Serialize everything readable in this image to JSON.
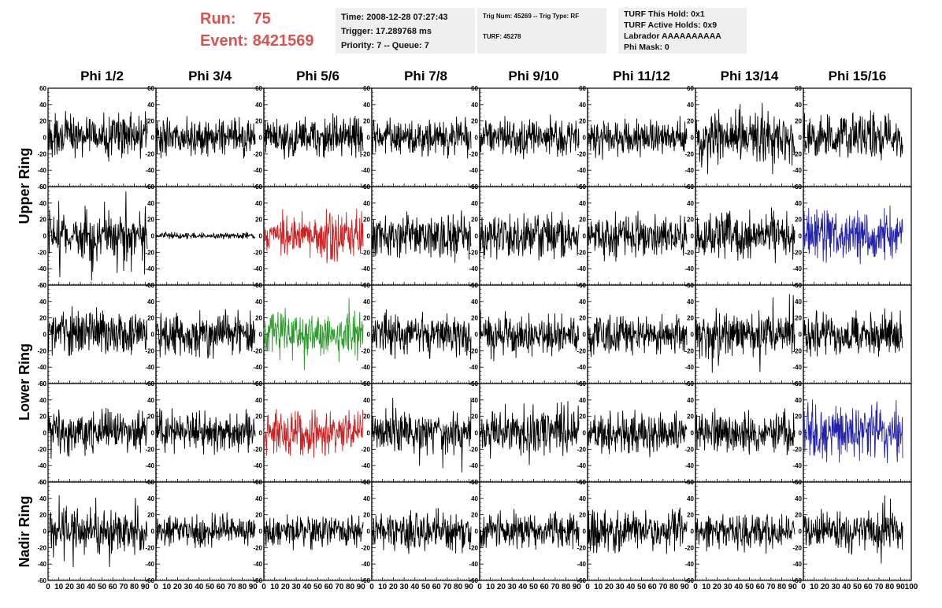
{
  "header": {
    "run_label": "Run:",
    "run_value": "75",
    "event_label": "Event:",
    "event_value": "8421569"
  },
  "info_boxes": {
    "time": [
      "Time: 2008-12-28 07:27:43",
      "Trigger: 17.289768 ms",
      "Priority: 7 -- Queue: 7"
    ],
    "trig": [
      "Trig Num: 45269 -- Trig Type: RF",
      "",
      "TURF: 45278"
    ],
    "turf": [
      "TURF This Hold: 0x1",
      "TURF Active Holds: 0x9",
      "Labrador AAAAAAAAAA",
      "Phi Mask: 0"
    ]
  },
  "chart_data": {
    "type": "line",
    "title": "",
    "columns": [
      "Phi 1/2",
      "Phi 3/4",
      "Phi 5/6",
      "Phi 7/8",
      "Phi 9/10",
      "Phi 11/12",
      "Phi 13/14",
      "Phi 15/16"
    ],
    "ring_labels": [
      {
        "label": "Upper Ring",
        "rows": [
          0,
          1
        ]
      },
      {
        "label": "Lower Ring",
        "rows": [
          2,
          3
        ]
      },
      {
        "label": "Nadir Ring",
        "rows": [
          4,
          4
        ]
      }
    ],
    "xlim": [
      0,
      100
    ],
    "ylim": [
      -60,
      60
    ],
    "x_ticks": [
      0,
      10,
      20,
      30,
      40,
      50,
      60,
      70,
      80,
      90,
      100
    ],
    "y_ticks": [
      -60,
      -40,
      -20,
      0,
      20,
      40,
      60
    ],
    "x_tick_labels_per_panel": [
      "0",
      "10",
      "20",
      "30",
      "40",
      "50",
      "60",
      "70",
      "80",
      "90",
      "100"
    ],
    "waveform_x_range": [
      0,
      92
    ],
    "panels": [
      {
        "row": 0,
        "col": 0,
        "color": "#000000",
        "amplitude": 14,
        "peak": 27,
        "center": 2
      },
      {
        "row": 0,
        "col": 1,
        "color": "#000000",
        "amplitude": 13,
        "peak": 21,
        "center": 0
      },
      {
        "row": 0,
        "col": 2,
        "color": "#000000",
        "amplitude": 13,
        "peak": 30,
        "center": 0
      },
      {
        "row": 0,
        "col": 3,
        "color": "#000000",
        "amplitude": 13,
        "peak": 22,
        "center": 0
      },
      {
        "row": 0,
        "col": 4,
        "color": "#000000",
        "amplitude": 13,
        "peak": 22,
        "center": 0
      },
      {
        "row": 0,
        "col": 5,
        "color": "#000000",
        "amplitude": 12,
        "peak": 20,
        "center": 0
      },
      {
        "row": 0,
        "col": 6,
        "color": "#000000",
        "amplitude": 16,
        "peak": 45,
        "center": 0
      },
      {
        "row": 0,
        "col": 7,
        "color": "#000000",
        "amplitude": 15,
        "peak": 30,
        "center": 0
      },
      {
        "row": 1,
        "col": 0,
        "color": "#000000",
        "amplitude": 17,
        "peak": 55,
        "center": 0
      },
      {
        "row": 1,
        "col": 1,
        "color": "#000000",
        "amplitude": 2,
        "peak": 5,
        "center": 0
      },
      {
        "row": 1,
        "col": 2,
        "color": "#cc2222",
        "amplitude": 15,
        "peak": 35,
        "center": 0
      },
      {
        "row": 1,
        "col": 3,
        "color": "#000000",
        "amplitude": 15,
        "peak": 30,
        "center": 0
      },
      {
        "row": 1,
        "col": 4,
        "color": "#000000",
        "amplitude": 15,
        "peak": 30,
        "center": 0
      },
      {
        "row": 1,
        "col": 5,
        "color": "#000000",
        "amplitude": 14,
        "peak": 25,
        "center": 0
      },
      {
        "row": 1,
        "col": 6,
        "color": "#000000",
        "amplitude": 16,
        "peak": 35,
        "center": 0
      },
      {
        "row": 1,
        "col": 7,
        "color": "#2222aa",
        "amplitude": 17,
        "peak": 32,
        "center": 0
      },
      {
        "row": 2,
        "col": 0,
        "color": "#000000",
        "amplitude": 15,
        "peak": 28,
        "center": 2
      },
      {
        "row": 2,
        "col": 1,
        "color": "#000000",
        "amplitude": 15,
        "peak": 30,
        "center": 0
      },
      {
        "row": 2,
        "col": 2,
        "color": "#2a9a2a",
        "amplitude": 15,
        "peak": 45,
        "center": 0
      },
      {
        "row": 2,
        "col": 3,
        "color": "#000000",
        "amplitude": 14,
        "peak": 30,
        "center": 0
      },
      {
        "row": 2,
        "col": 4,
        "color": "#000000",
        "amplitude": 14,
        "peak": 30,
        "center": 0
      },
      {
        "row": 2,
        "col": 5,
        "color": "#000000",
        "amplitude": 13,
        "peak": 25,
        "center": 0
      },
      {
        "row": 2,
        "col": 6,
        "color": "#000000",
        "amplitude": 16,
        "peak": 55,
        "center": 0
      },
      {
        "row": 2,
        "col": 7,
        "color": "#000000",
        "amplitude": 14,
        "peak": 30,
        "center": 0
      },
      {
        "row": 3,
        "col": 0,
        "color": "#000000",
        "amplitude": 15,
        "peak": 30,
        "center": 0
      },
      {
        "row": 3,
        "col": 1,
        "color": "#000000",
        "amplitude": 14,
        "peak": 30,
        "center": 0
      },
      {
        "row": 3,
        "col": 2,
        "color": "#cc2222",
        "amplitude": 15,
        "peak": 30,
        "center": 0
      },
      {
        "row": 3,
        "col": 3,
        "color": "#000000",
        "amplitude": 15,
        "peak": 50,
        "center": 0
      },
      {
        "row": 3,
        "col": 4,
        "color": "#000000",
        "amplitude": 15,
        "peak": 45,
        "center": 0
      },
      {
        "row": 3,
        "col": 5,
        "color": "#000000",
        "amplitude": 14,
        "peak": 30,
        "center": 0
      },
      {
        "row": 3,
        "col": 6,
        "color": "#000000",
        "amplitude": 14,
        "peak": 30,
        "center": 0
      },
      {
        "row": 3,
        "col": 7,
        "color": "#2222aa",
        "amplitude": 18,
        "peak": 45,
        "center": 0
      },
      {
        "row": 4,
        "col": 0,
        "color": "#000000",
        "amplitude": 15,
        "peak": 45,
        "center": 0
      },
      {
        "row": 4,
        "col": 1,
        "color": "#000000",
        "amplitude": 11,
        "peak": 20,
        "center": 0
      },
      {
        "row": 4,
        "col": 2,
        "color": "#000000",
        "amplitude": 11,
        "peak": 22,
        "center": 0
      },
      {
        "row": 4,
        "col": 3,
        "color": "#000000",
        "amplitude": 13,
        "peak": 28,
        "center": 0
      },
      {
        "row": 4,
        "col": 4,
        "color": "#000000",
        "amplitude": 12,
        "peak": 22,
        "center": 0
      },
      {
        "row": 4,
        "col": 5,
        "color": "#000000",
        "amplitude": 13,
        "peak": 28,
        "center": 0
      },
      {
        "row": 4,
        "col": 6,
        "color": "#000000",
        "amplitude": 12,
        "peak": 22,
        "center": 0
      },
      {
        "row": 4,
        "col": 7,
        "color": "#000000",
        "amplitude": 14,
        "peak": 45,
        "center": 0
      }
    ]
  }
}
